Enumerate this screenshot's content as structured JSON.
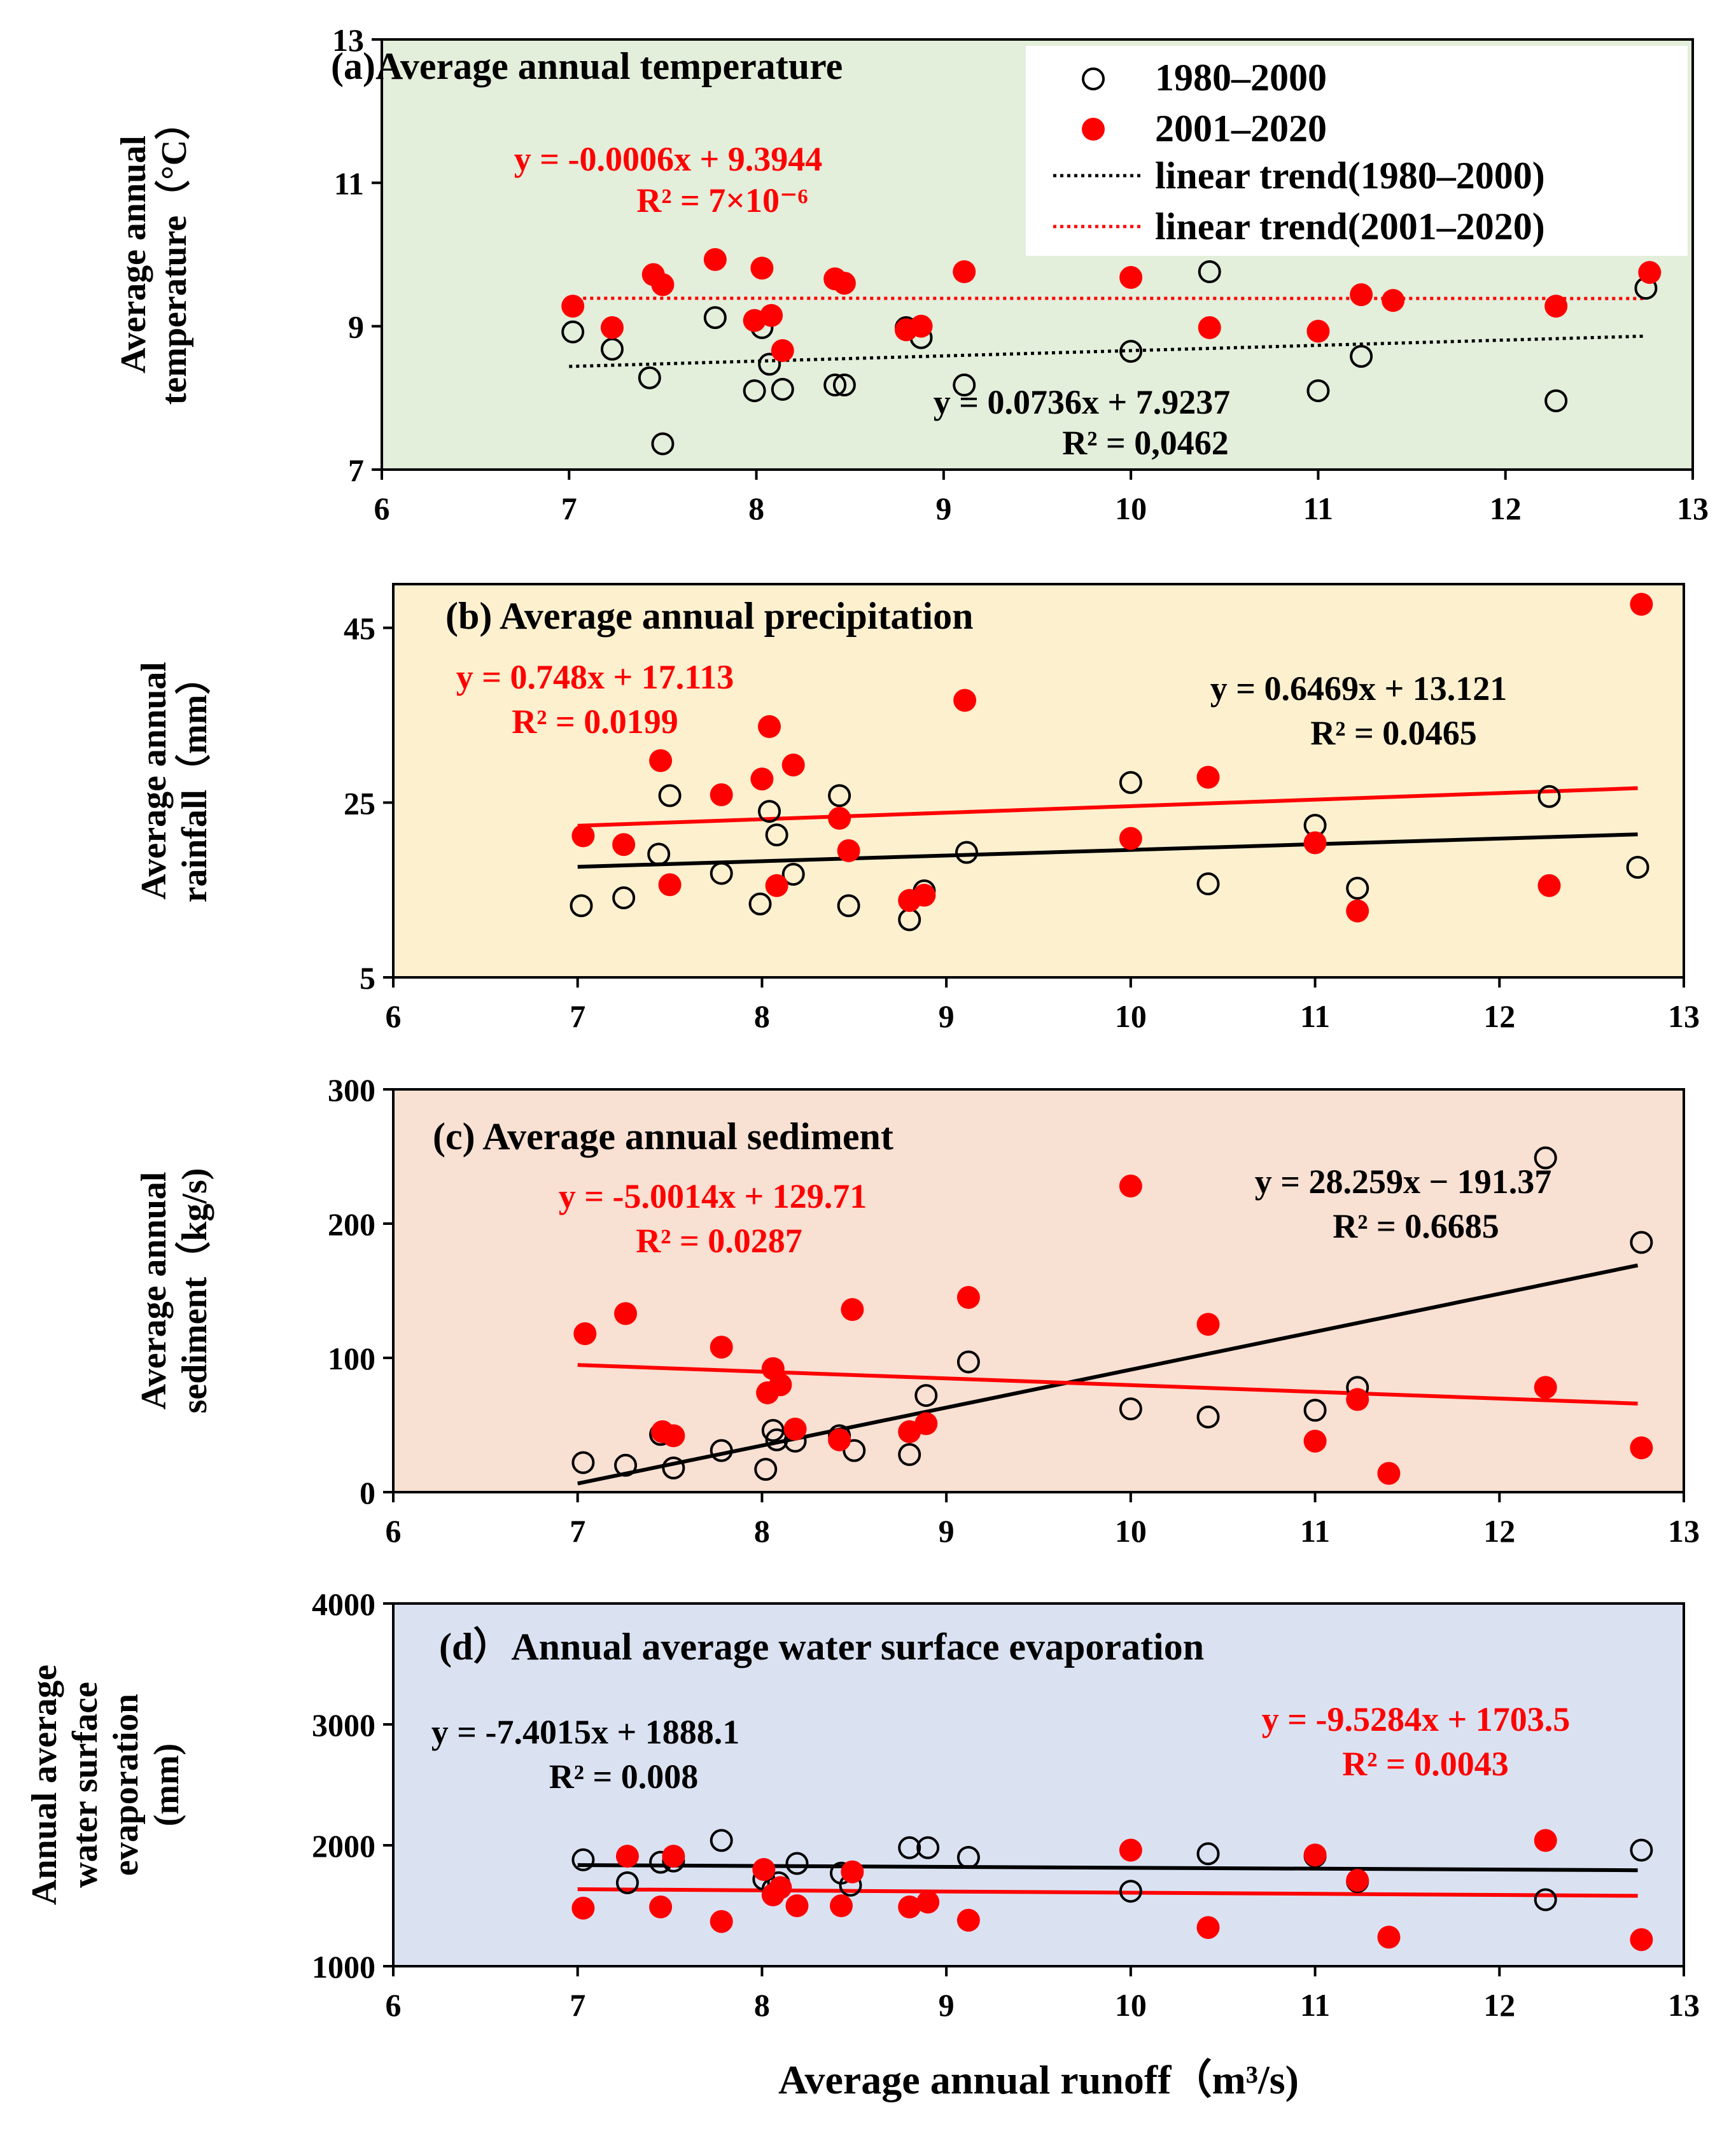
{
  "legend": {
    "series_a": "1980–2000",
    "series_b": "2001–2020",
    "trend_a": "linear trend(1980–2000)",
    "trend_b": "linear trend(2001–2020)"
  },
  "colors": {
    "series_a": "#000000",
    "series_b": "#ff0000"
  },
  "x_axis_label": "Average annual runoff（m³/s)",
  "chart_data": [
    {
      "id": "a",
      "type": "scatter",
      "title": "(a)Average annual temperature",
      "ylabel_lines": [
        "Average annual",
        "temperature（°C）"
      ],
      "xlim": [
        6,
        13
      ],
      "ylim": [
        7,
        13
      ],
      "xticks": [
        6,
        7,
        8,
        9,
        10,
        11,
        12,
        13
      ],
      "yticks": [
        7,
        9,
        11,
        13
      ],
      "background": "#e3eedb",
      "has_legend": true,
      "trend_style": "dotted",
      "series": [
        {
          "name": "1980–2000",
          "color": "#000000",
          "marker": "open",
          "points": [
            [
              7.02,
              8.92
            ],
            [
              7.23,
              8.68
            ],
            [
              7.43,
              8.28
            ],
            [
              7.5,
              7.36
            ],
            [
              7.78,
              9.12
            ],
            [
              7.99,
              8.1
            ],
            [
              8.03,
              8.98
            ],
            [
              8.07,
              8.47
            ],
            [
              8.14,
              8.12
            ],
            [
              8.42,
              8.18
            ],
            [
              8.47,
              8.18
            ],
            [
              8.8,
              8.98
            ],
            [
              8.88,
              8.84
            ],
            [
              9.11,
              8.18
            ],
            [
              10.0,
              8.65
            ],
            [
              10.42,
              9.76
            ],
            [
              11.0,
              8.1
            ],
            [
              11.23,
              8.58
            ],
            [
              12.27,
              7.96
            ],
            [
              12.75,
              9.53
            ]
          ],
          "trend": {
            "slope": 0.0736,
            "intercept": 7.9237,
            "x_range": [
              7.0,
              12.75
            ]
          },
          "equation": "y = 0.0736x + 7.9237",
          "r2": "R² = 0,0462"
        },
        {
          "name": "2001–2020",
          "color": "#ff0000",
          "marker": "filled",
          "points": [
            [
              7.02,
              9.28
            ],
            [
              7.23,
              8.98
            ],
            [
              7.45,
              9.72
            ],
            [
              7.5,
              9.58
            ],
            [
              7.78,
              9.93
            ],
            [
              7.99,
              9.08
            ],
            [
              8.03,
              9.81
            ],
            [
              8.08,
              9.15
            ],
            [
              8.14,
              8.66
            ],
            [
              8.42,
              9.66
            ],
            [
              8.47,
              9.6
            ],
            [
              8.8,
              8.95
            ],
            [
              8.88,
              9.0
            ],
            [
              9.11,
              9.76
            ],
            [
              10.0,
              9.68
            ],
            [
              10.42,
              8.98
            ],
            [
              11.0,
              8.93
            ],
            [
              11.23,
              9.44
            ],
            [
              11.4,
              9.36
            ],
            [
              12.27,
              9.28
            ],
            [
              12.77,
              9.75
            ]
          ],
          "trend": {
            "slope": -0.0006,
            "intercept": 9.3944,
            "x_range": [
              7.0,
              12.75
            ]
          },
          "equation": "y = -0.0006x + 9.3944",
          "r2": "R² = 7×10⁻⁶"
        }
      ]
    },
    {
      "id": "b",
      "type": "scatter",
      "title": "(b) Average annual precipitation",
      "ylabel_lines": [
        "Average annual",
        "rainfall（mm）"
      ],
      "xlim": [
        6,
        13
      ],
      "ylim": [
        5,
        50
      ],
      "xticks": [
        6,
        7,
        8,
        9,
        10,
        11,
        12,
        13
      ],
      "yticks": [
        5,
        25,
        45
      ],
      "background": "#fdf0cf",
      "has_legend": false,
      "trend_style": "solid",
      "series": [
        {
          "name": "1980–2000",
          "color": "#000000",
          "marker": "open",
          "points": [
            [
              7.02,
              13.2
            ],
            [
              7.25,
              14.1
            ],
            [
              7.44,
              19.1
            ],
            [
              7.5,
              25.8
            ],
            [
              7.78,
              16.9
            ],
            [
              7.99,
              13.4
            ],
            [
              8.04,
              24.0
            ],
            [
              8.08,
              21.3
            ],
            [
              8.17,
              16.8
            ],
            [
              8.42,
              25.8
            ],
            [
              8.47,
              13.2
            ],
            [
              8.8,
              11.6
            ],
            [
              8.88,
              14.9
            ],
            [
              9.11,
              19.3
            ],
            [
              10.0,
              27.3
            ],
            [
              10.42,
              15.7
            ],
            [
              11.0,
              22.4
            ],
            [
              11.23,
              15.2
            ],
            [
              12.27,
              25.7
            ],
            [
              12.75,
              17.6
            ]
          ],
          "trend": {
            "slope": 0.6469,
            "intercept": 13.121,
            "x_range": [
              7.0,
              12.75
            ]
          },
          "equation": "y = 0.6469x + 13.121",
          "r2": "R² = 0.0465"
        },
        {
          "name": "2001–2020",
          "color": "#ff0000",
          "marker": "filled",
          "points": [
            [
              7.03,
              21.2
            ],
            [
              7.25,
              20.2
            ],
            [
              7.45,
              29.8
            ],
            [
              7.5,
              15.6
            ],
            [
              7.78,
              25.9
            ],
            [
              8.0,
              27.7
            ],
            [
              8.04,
              33.7
            ],
            [
              8.08,
              15.5
            ],
            [
              8.17,
              29.3
            ],
            [
              8.42,
              23.2
            ],
            [
              8.47,
              19.5
            ],
            [
              8.8,
              13.8
            ],
            [
              8.88,
              14.4
            ],
            [
              9.1,
              36.7
            ],
            [
              10.0,
              20.9
            ],
            [
              10.42,
              27.9
            ],
            [
              11.0,
              20.4
            ],
            [
              11.23,
              12.6
            ],
            [
              12.27,
              15.5
            ],
            [
              12.77,
              47.7
            ]
          ],
          "trend": {
            "slope": 0.748,
            "intercept": 17.113,
            "x_range": [
              7.0,
              12.75
            ]
          },
          "equation": "y = 0.748x + 17.113",
          "r2": "R² = 0.0199"
        }
      ]
    },
    {
      "id": "c",
      "type": "scatter",
      "title": "(c) Average annual sediment",
      "ylabel_lines": [
        "Average annual",
        "sediment（kg/s)"
      ],
      "xlim": [
        6,
        13
      ],
      "ylim": [
        0,
        300
      ],
      "xticks": [
        6,
        7,
        8,
        9,
        10,
        11,
        12,
        13
      ],
      "yticks": [
        0,
        100,
        200,
        300
      ],
      "background": "#f8e0d2",
      "has_legend": false,
      "trend_style": "solid",
      "series": [
        {
          "name": "1980–2000",
          "color": "#000000",
          "marker": "open",
          "points": [
            [
              7.03,
              22
            ],
            [
              7.26,
              20
            ],
            [
              7.45,
              43
            ],
            [
              7.52,
              18
            ],
            [
              7.78,
              31
            ],
            [
              8.02,
              17
            ],
            [
              8.06,
              46
            ],
            [
              8.08,
              39
            ],
            [
              8.18,
              38
            ],
            [
              8.42,
              42
            ],
            [
              8.5,
              31
            ],
            [
              8.8,
              28
            ],
            [
              8.89,
              72
            ],
            [
              9.12,
              97
            ],
            [
              10.0,
              62
            ],
            [
              10.42,
              56
            ],
            [
              11.0,
              61
            ],
            [
              11.23,
              78
            ],
            [
              12.25,
              249
            ],
            [
              12.77,
              186
            ]
          ],
          "trend": {
            "slope": 28.259,
            "intercept": -191.37,
            "x_range": [
              7.0,
              12.75
            ]
          },
          "equation": "y = 28.259x − 191.37",
          "r2": "R² = 0.6685"
        },
        {
          "name": "2001–2020",
          "color": "#ff0000",
          "marker": "filled",
          "points": [
            [
              7.04,
              118
            ],
            [
              7.26,
              133
            ],
            [
              7.46,
              45
            ],
            [
              7.52,
              42
            ],
            [
              7.78,
              108
            ],
            [
              8.03,
              74
            ],
            [
              8.06,
              92
            ],
            [
              8.1,
              80
            ],
            [
              8.18,
              47
            ],
            [
              8.42,
              39
            ],
            [
              8.49,
              136
            ],
            [
              8.8,
              45
            ],
            [
              8.89,
              51
            ],
            [
              9.12,
              145
            ],
            [
              10.0,
              228
            ],
            [
              10.42,
              125
            ],
            [
              11.0,
              38
            ],
            [
              11.23,
              69
            ],
            [
              11.4,
              14
            ],
            [
              12.25,
              78
            ],
            [
              12.77,
              33
            ]
          ],
          "trend": {
            "slope": -5.0014,
            "intercept": 129.71,
            "x_range": [
              7.0,
              12.75
            ]
          },
          "equation": "y = -5.0014x + 129.71",
          "r2": "R² = 0.0287"
        }
      ]
    },
    {
      "id": "d",
      "type": "scatter",
      "title": "(d）Annual average water surface evaporation",
      "ylabel_lines": [
        "Annual average",
        "water surface",
        "evaporation",
        "(mm)"
      ],
      "xlim": [
        6,
        13
      ],
      "ylim": [
        1000,
        4000
      ],
      "xticks": [
        6,
        7,
        8,
        9,
        10,
        11,
        12,
        13
      ],
      "yticks": [
        1000,
        2000,
        3000,
        4000
      ],
      "background": "#dae2f2",
      "has_legend": false,
      "trend_style": "solid",
      "series": [
        {
          "name": "1980–2000",
          "color": "#000000",
          "marker": "open",
          "points": [
            [
              7.03,
              1880
            ],
            [
              7.27,
              1690
            ],
            [
              7.45,
              1860
            ],
            [
              7.52,
              1870
            ],
            [
              7.78,
              2040
            ],
            [
              8.01,
              1720
            ],
            [
              8.06,
              1640
            ],
            [
              8.09,
              1690
            ],
            [
              8.19,
              1850
            ],
            [
              8.43,
              1770
            ],
            [
              8.48,
              1670
            ],
            [
              8.8,
              1980
            ],
            [
              8.9,
              1980
            ],
            [
              9.12,
              1900
            ],
            [
              10.0,
              1620
            ],
            [
              10.42,
              1930
            ],
            [
              11.0,
              1910
            ],
            [
              11.23,
              1700
            ],
            [
              12.25,
              1550
            ],
            [
              12.77,
              1960
            ]
          ],
          "trend": {
            "slope": -7.4015,
            "intercept": 1888.1,
            "x_range": [
              7.0,
              12.75
            ]
          },
          "equation": "y = -7.4015x + 1888.1",
          "r2": "R² = 0.008"
        },
        {
          "name": "2001–2020",
          "color": "#ff0000",
          "marker": "filled",
          "points": [
            [
              7.03,
              1480
            ],
            [
              7.27,
              1910
            ],
            [
              7.45,
              1490
            ],
            [
              7.52,
              1910
            ],
            [
              7.78,
              1370
            ],
            [
              8.01,
              1800
            ],
            [
              8.06,
              1590
            ],
            [
              8.1,
              1650
            ],
            [
              8.19,
              1500
            ],
            [
              8.43,
              1500
            ],
            [
              8.49,
              1780
            ],
            [
              8.8,
              1490
            ],
            [
              8.9,
              1530
            ],
            [
              9.12,
              1380
            ],
            [
              10.0,
              1960
            ],
            [
              10.42,
              1320
            ],
            [
              11.0,
              1920
            ],
            [
              11.23,
              1710
            ],
            [
              11.4,
              1240
            ],
            [
              12.25,
              2040
            ],
            [
              12.77,
              1220
            ]
          ],
          "trend": {
            "slope": -9.5284,
            "intercept": 1703.5,
            "x_range": [
              7.0,
              12.75
            ]
          },
          "equation": "y = -9.5284x + 1703.5",
          "r2": "R² = 0.0043"
        }
      ]
    }
  ]
}
